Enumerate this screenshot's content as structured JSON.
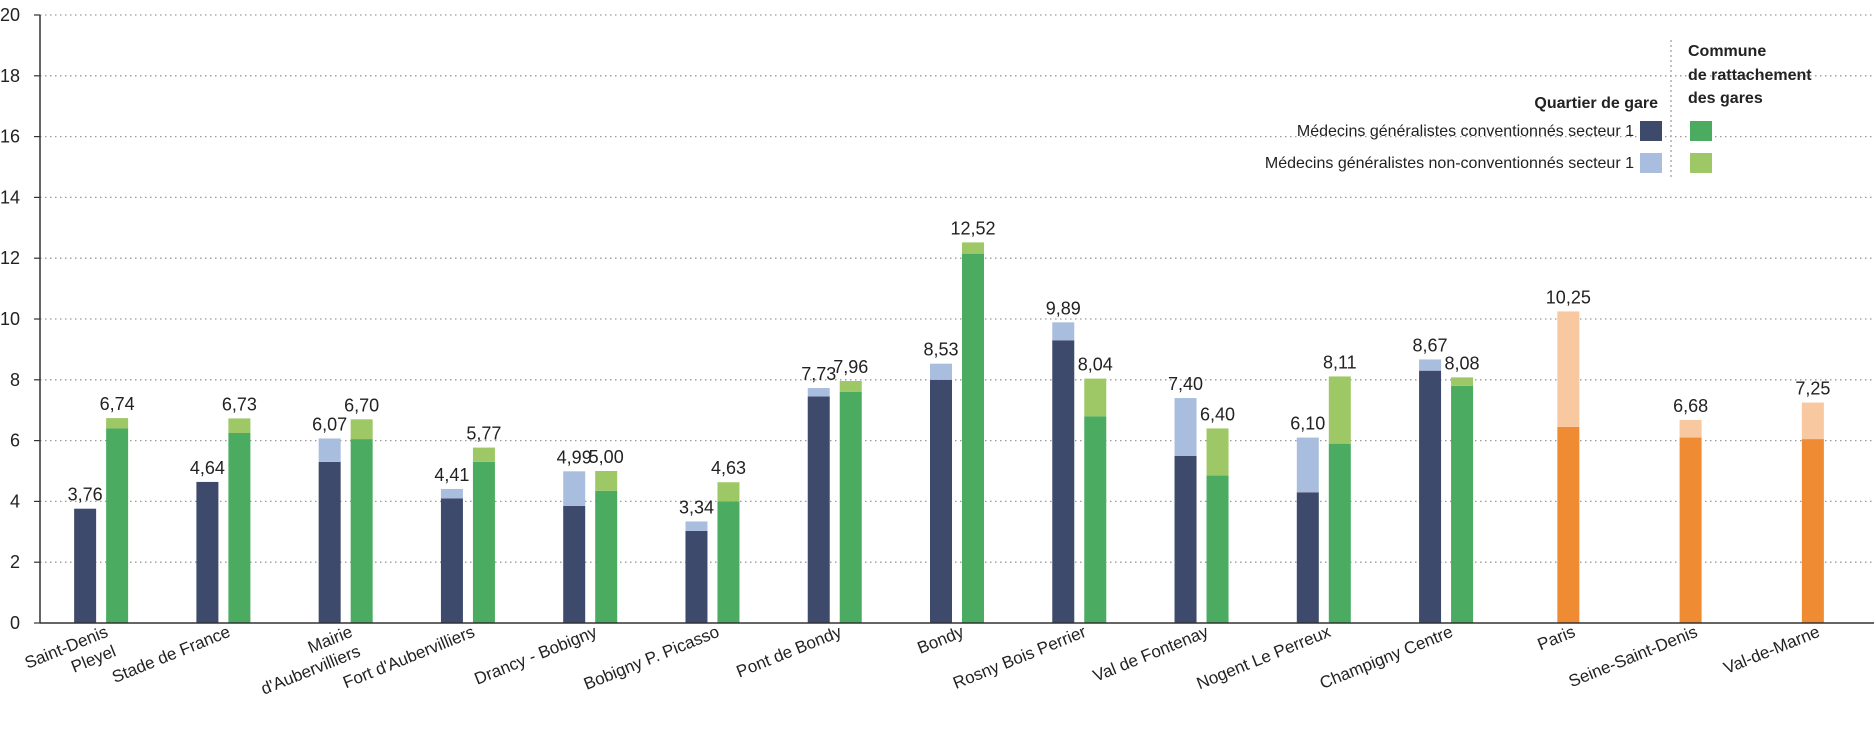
{
  "chart_data": {
    "type": "bar",
    "ylim": [
      0,
      20
    ],
    "yticks": [
      "0",
      "2",
      "4",
      "6",
      "8",
      "10",
      "12",
      "14",
      "16",
      "18",
      "20"
    ],
    "grid": true,
    "legend": {
      "placement": "top-right",
      "header_left": "Quartier de gare",
      "header_right_lines": [
        "Commune",
        "de rattachement",
        "des gares"
      ],
      "items": [
        "Médecins généralistes conventionnés secteur 1",
        "Médecins généralistes non-conventionnés secteur 1"
      ]
    },
    "colors": {
      "quartier_conv": "#3d4a6b",
      "quartier_nonconv": "#a9bedf",
      "commune_conv": "#4aab61",
      "commune_nonconv": "#9dc865",
      "dept_conv": "#ee8b33",
      "dept_nonconv": "#f8c8a0"
    },
    "categories": [
      {
        "label": [
          "Saint-Denis",
          "Pleyel"
        ],
        "bars": [
          {
            "group": "quartier",
            "conv": 3.76,
            "nonconv": 0,
            "total_label": "3,76"
          },
          {
            "group": "commune",
            "conv": 6.4,
            "nonconv": 0.34,
            "total_label": "6,74"
          }
        ]
      },
      {
        "label": [
          "Stade de France"
        ],
        "bars": [
          {
            "group": "quartier",
            "conv": 4.64,
            "nonconv": 0,
            "total_label": "4,64"
          },
          {
            "group": "commune",
            "conv": 6.25,
            "nonconv": 0.48,
            "total_label": "6,73"
          }
        ]
      },
      {
        "label": [
          "Mairie",
          "d'Aubervilliers"
        ],
        "bars": [
          {
            "group": "quartier",
            "conv": 5.3,
            "nonconv": 0.77,
            "total_label": "6,07"
          },
          {
            "group": "commune",
            "conv": 6.05,
            "nonconv": 0.65,
            "total_label": "6,70"
          }
        ]
      },
      {
        "label": [
          "Fort d'Aubervilliers"
        ],
        "bars": [
          {
            "group": "quartier",
            "conv": 4.1,
            "nonconv": 0.31,
            "total_label": "4,41"
          },
          {
            "group": "commune",
            "conv": 5.3,
            "nonconv": 0.47,
            "total_label": "5,77"
          }
        ]
      },
      {
        "label": [
          "Drancy - Bobigny"
        ],
        "bars": [
          {
            "group": "quartier",
            "conv": 3.85,
            "nonconv": 1.14,
            "total_label": "4,99"
          },
          {
            "group": "commune",
            "conv": 4.35,
            "nonconv": 0.65,
            "total_label": "5,00"
          }
        ]
      },
      {
        "label": [
          "Bobigny P. Picasso"
        ],
        "bars": [
          {
            "group": "quartier",
            "conv": 3.03,
            "nonconv": 0.31,
            "total_label": "3,34"
          },
          {
            "group": "commune",
            "conv": 4.0,
            "nonconv": 0.63,
            "total_label": "4,63"
          }
        ]
      },
      {
        "label": [
          "Pont de Bondy"
        ],
        "bars": [
          {
            "group": "quartier",
            "conv": 7.45,
            "nonconv": 0.28,
            "total_label": "7,73"
          },
          {
            "group": "commune",
            "conv": 7.6,
            "nonconv": 0.36,
            "total_label": "7,96"
          }
        ]
      },
      {
        "label": [
          "Bondy"
        ],
        "bars": [
          {
            "group": "quartier",
            "conv": 8.0,
            "nonconv": 0.53,
            "total_label": "8,53"
          },
          {
            "group": "commune",
            "conv": 12.15,
            "nonconv": 0.37,
            "total_label": "12,52"
          }
        ]
      },
      {
        "label": [
          "Rosny Bois Perrier"
        ],
        "bars": [
          {
            "group": "quartier",
            "conv": 9.3,
            "nonconv": 0.59,
            "total_label": "9,89"
          },
          {
            "group": "commune",
            "conv": 6.8,
            "nonconv": 1.24,
            "total_label": "8,04"
          }
        ]
      },
      {
        "label": [
          "Val de Fontenay"
        ],
        "bars": [
          {
            "group": "quartier",
            "conv": 5.5,
            "nonconv": 1.9,
            "total_label": "7,40"
          },
          {
            "group": "commune",
            "conv": 4.85,
            "nonconv": 1.55,
            "total_label": "6,40"
          }
        ]
      },
      {
        "label": [
          "Nogent Le Perreux"
        ],
        "bars": [
          {
            "group": "quartier",
            "conv": 4.3,
            "nonconv": 1.8,
            "total_label": "6,10"
          },
          {
            "group": "commune",
            "conv": 5.9,
            "nonconv": 2.21,
            "total_label": "8,11"
          }
        ]
      },
      {
        "label": [
          "Champigny Centre"
        ],
        "bars": [
          {
            "group": "quartier",
            "conv": 8.3,
            "nonconv": 0.37,
            "total_label": "8,67"
          },
          {
            "group": "commune",
            "conv": 7.8,
            "nonconv": 0.28,
            "total_label": "8,08"
          }
        ]
      },
      {
        "label": [
          "Paris"
        ],
        "bars": [
          {
            "group": "dept",
            "conv": 6.45,
            "nonconv": 3.8,
            "total_label": "10,25"
          }
        ]
      },
      {
        "label": [
          "Seine-Saint-Denis"
        ],
        "bars": [
          {
            "group": "dept",
            "conv": 6.1,
            "nonconv": 0.58,
            "total_label": "6,68"
          }
        ]
      },
      {
        "label": [
          "Val-de-Marne"
        ],
        "bars": [
          {
            "group": "dept",
            "conv": 6.05,
            "nonconv": 1.2,
            "total_label": "7,25"
          }
        ]
      }
    ]
  }
}
